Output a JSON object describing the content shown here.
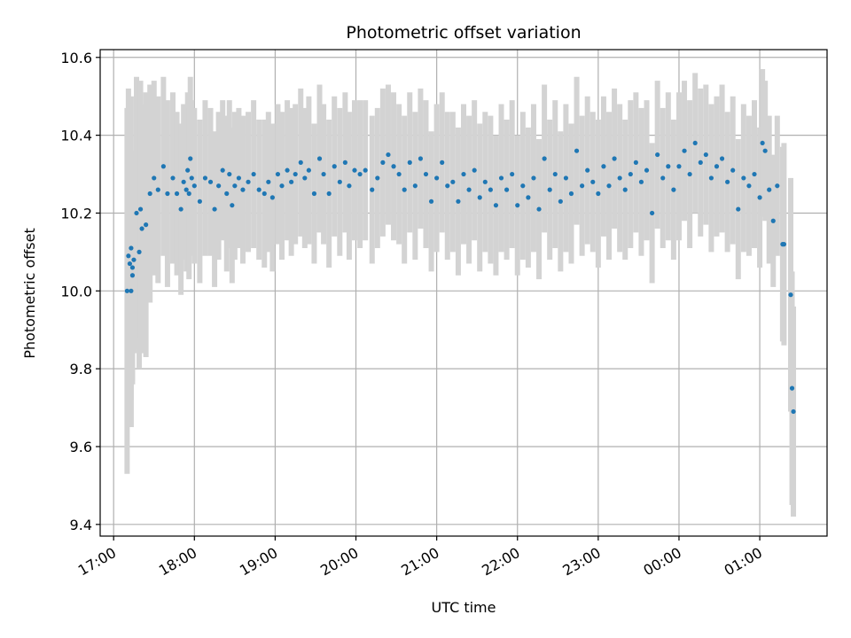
{
  "chart_data": {
    "type": "scatter",
    "title": "Photometric offset variation",
    "xlabel": "UTC time",
    "ylabel": "Photometric offset",
    "x_unit": "UTC time of night (HH:MM; times after midnight belong to the next day)",
    "xlim": [
      "16:50",
      "01:50"
    ],
    "ylim": [
      9.37,
      10.62
    ],
    "x_ticks": [
      "17:00",
      "18:00",
      "19:00",
      "20:00",
      "21:00",
      "22:00",
      "23:00",
      "00:00",
      "01:00"
    ],
    "y_ticks": [
      9.4,
      9.6,
      9.8,
      10.0,
      10.2,
      10.4,
      10.6
    ],
    "y_tick_labels": [
      "9.4",
      "9.6",
      "9.8",
      "10.0",
      "10.2",
      "10.4",
      "10.6"
    ],
    "grid": true,
    "legend": "none",
    "colors": {
      "points": "#1f77b4",
      "errorbars": "#d3d3d3",
      "grid": "#b0b0b0"
    },
    "series": [
      {
        "marker": "dot",
        "errorbars": true,
        "points": [
          [
            "17:10",
            10.0,
            0.47
          ],
          [
            "17:11",
            10.09,
            0.43
          ],
          [
            "17:12",
            10.07,
            0.41
          ],
          [
            "17:13",
            10.11,
            0.39
          ],
          [
            "17:13",
            10.0,
            0.35
          ],
          [
            "17:14",
            10.06,
            0.3
          ],
          [
            "17:14",
            10.04,
            0.27
          ],
          [
            "17:15",
            10.08,
            0.24
          ],
          [
            "17:17",
            10.2,
            0.35
          ],
          [
            "17:19",
            10.1,
            0.3
          ],
          [
            "17:20",
            10.21,
            0.33
          ],
          [
            "17:21",
            10.16,
            0.32
          ],
          [
            "17:24",
            10.17,
            0.34
          ],
          [
            "17:27",
            10.25,
            0.28
          ],
          [
            "17:30",
            10.29,
            0.25
          ],
          [
            "17:33",
            10.26,
            0.24
          ],
          [
            "17:37",
            10.32,
            0.23
          ],
          [
            "17:40",
            10.25,
            0.24
          ],
          [
            "17:44",
            10.29,
            0.22
          ],
          [
            "17:47",
            10.25,
            0.21
          ],
          [
            "17:50",
            10.21,
            0.22
          ],
          [
            "17:52",
            10.28,
            0.2
          ],
          [
            "17:54",
            10.26,
            0.21
          ],
          [
            "17:55",
            10.31,
            0.2
          ],
          [
            "17:56",
            10.25,
            0.22
          ],
          [
            "17:57",
            10.34,
            0.21
          ],
          [
            "17:58",
            10.29,
            0.2
          ],
          [
            "18:00",
            10.27,
            0.2
          ],
          [
            "18:04",
            10.23,
            0.21
          ],
          [
            "18:08",
            10.29,
            0.2
          ],
          [
            "18:12",
            10.28,
            0.19
          ],
          [
            "18:15",
            10.21,
            0.2
          ],
          [
            "18:18",
            10.27,
            0.19
          ],
          [
            "18:21",
            10.31,
            0.18
          ],
          [
            "18:24",
            10.25,
            0.2
          ],
          [
            "18:26",
            10.3,
            0.19
          ],
          [
            "18:28",
            10.22,
            0.2
          ],
          [
            "18:30",
            10.27,
            0.19
          ],
          [
            "18:33",
            10.29,
            0.18
          ],
          [
            "18:36",
            10.26,
            0.19
          ],
          [
            "18:40",
            10.28,
            0.18
          ],
          [
            "18:44",
            10.3,
            0.19
          ],
          [
            "18:48",
            10.26,
            0.18
          ],
          [
            "18:52",
            10.25,
            0.19
          ],
          [
            "18:55",
            10.28,
            0.18
          ],
          [
            "18:58",
            10.24,
            0.19
          ],
          [
            "19:02",
            10.3,
            0.18
          ],
          [
            "19:05",
            10.27,
            0.19
          ],
          [
            "19:09",
            10.31,
            0.18
          ],
          [
            "19:12",
            10.28,
            0.19
          ],
          [
            "19:15",
            10.3,
            0.18
          ],
          [
            "19:19",
            10.33,
            0.19
          ],
          [
            "19:22",
            10.29,
            0.18
          ],
          [
            "19:25",
            10.31,
            0.19
          ],
          [
            "19:29",
            10.25,
            0.18
          ],
          [
            "19:33",
            10.34,
            0.19
          ],
          [
            "19:36",
            10.3,
            0.18
          ],
          [
            "19:40",
            10.25,
            0.19
          ],
          [
            "19:44",
            10.32,
            0.18
          ],
          [
            "19:48",
            10.28,
            0.19
          ],
          [
            "19:52",
            10.33,
            0.18
          ],
          [
            "19:55",
            10.27,
            0.19
          ],
          [
            "19:59",
            10.31,
            0.18
          ],
          [
            "20:03",
            10.3,
            0.19
          ],
          [
            "20:07",
            10.31,
            0.18
          ],
          [
            "20:12",
            10.26,
            0.19
          ],
          [
            "20:16",
            10.29,
            0.18
          ],
          [
            "20:20",
            10.33,
            0.19
          ],
          [
            "20:24",
            10.35,
            0.18
          ],
          [
            "20:28",
            10.32,
            0.19
          ],
          [
            "20:32",
            10.3,
            0.18
          ],
          [
            "20:36",
            10.26,
            0.19
          ],
          [
            "20:40",
            10.33,
            0.18
          ],
          [
            "20:44",
            10.27,
            0.19
          ],
          [
            "20:48",
            10.34,
            0.18
          ],
          [
            "20:52",
            10.3,
            0.19
          ],
          [
            "20:56",
            10.23,
            0.18
          ],
          [
            "21:00",
            10.29,
            0.19
          ],
          [
            "21:04",
            10.33,
            0.18
          ],
          [
            "21:08",
            10.27,
            0.19
          ],
          [
            "21:12",
            10.28,
            0.18
          ],
          [
            "21:16",
            10.23,
            0.19
          ],
          [
            "21:20",
            10.3,
            0.18
          ],
          [
            "21:24",
            10.26,
            0.19
          ],
          [
            "21:28",
            10.31,
            0.18
          ],
          [
            "21:32",
            10.24,
            0.19
          ],
          [
            "21:36",
            10.28,
            0.18
          ],
          [
            "21:40",
            10.26,
            0.19
          ],
          [
            "21:44",
            10.22,
            0.18
          ],
          [
            "21:48",
            10.29,
            0.19
          ],
          [
            "21:52",
            10.26,
            0.18
          ],
          [
            "21:56",
            10.3,
            0.19
          ],
          [
            "22:00",
            10.22,
            0.18
          ],
          [
            "22:04",
            10.27,
            0.19
          ],
          [
            "22:08",
            10.24,
            0.18
          ],
          [
            "22:12",
            10.29,
            0.19
          ],
          [
            "22:16",
            10.21,
            0.18
          ],
          [
            "22:20",
            10.34,
            0.19
          ],
          [
            "22:24",
            10.26,
            0.18
          ],
          [
            "22:28",
            10.3,
            0.19
          ],
          [
            "22:32",
            10.23,
            0.18
          ],
          [
            "22:36",
            10.29,
            0.19
          ],
          [
            "22:40",
            10.25,
            0.18
          ],
          [
            "22:44",
            10.36,
            0.19
          ],
          [
            "22:48",
            10.27,
            0.18
          ],
          [
            "22:52",
            10.31,
            0.19
          ],
          [
            "22:56",
            10.28,
            0.18
          ],
          [
            "23:00",
            10.25,
            0.19
          ],
          [
            "23:04",
            10.32,
            0.18
          ],
          [
            "23:08",
            10.27,
            0.19
          ],
          [
            "23:12",
            10.34,
            0.18
          ],
          [
            "23:16",
            10.29,
            0.19
          ],
          [
            "23:20",
            10.26,
            0.18
          ],
          [
            "23:24",
            10.3,
            0.19
          ],
          [
            "23:28",
            10.33,
            0.18
          ],
          [
            "23:32",
            10.28,
            0.19
          ],
          [
            "23:36",
            10.31,
            0.18
          ],
          [
            "23:40",
            10.2,
            0.18
          ],
          [
            "23:44",
            10.35,
            0.19
          ],
          [
            "23:48",
            10.29,
            0.18
          ],
          [
            "23:52",
            10.32,
            0.19
          ],
          [
            "23:56",
            10.26,
            0.18
          ],
          [
            "00:00",
            10.32,
            0.19
          ],
          [
            "00:04",
            10.36,
            0.18
          ],
          [
            "00:08",
            10.3,
            0.19
          ],
          [
            "00:12",
            10.38,
            0.18
          ],
          [
            "00:16",
            10.33,
            0.19
          ],
          [
            "00:20",
            10.35,
            0.18
          ],
          [
            "00:24",
            10.29,
            0.19
          ],
          [
            "00:28",
            10.32,
            0.18
          ],
          [
            "00:32",
            10.34,
            0.19
          ],
          [
            "00:36",
            10.28,
            0.18
          ],
          [
            "00:40",
            10.31,
            0.19
          ],
          [
            "00:44",
            10.21,
            0.18
          ],
          [
            "00:48",
            10.29,
            0.19
          ],
          [
            "00:52",
            10.27,
            0.18
          ],
          [
            "00:56",
            10.3,
            0.19
          ],
          [
            "01:00",
            10.24,
            0.18
          ],
          [
            "01:02",
            10.38,
            0.19
          ],
          [
            "01:04",
            10.36,
            0.18
          ],
          [
            "01:07",
            10.26,
            0.19
          ],
          [
            "01:10",
            10.18,
            0.17
          ],
          [
            "01:13",
            10.27,
            0.18
          ],
          [
            "01:17",
            10.12,
            0.25
          ],
          [
            "01:18",
            10.12,
            0.26
          ],
          [
            "01:23",
            9.99,
            0.3
          ],
          [
            "01:24",
            9.75,
            0.3
          ],
          [
            "01:25",
            9.69,
            0.27
          ]
        ]
      }
    ]
  }
}
